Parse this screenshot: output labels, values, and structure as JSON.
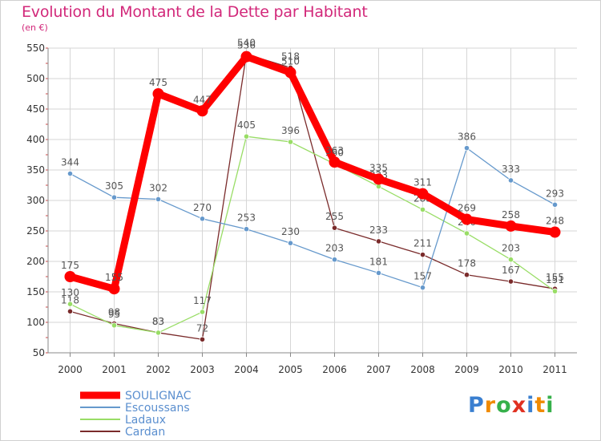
{
  "title": "Evolution du Montant de la Dette par Habitant",
  "unit": "(en €)",
  "logo": {
    "letters": [
      "P",
      "r",
      "o",
      "x",
      "i",
      "t",
      "i"
    ],
    "colors": [
      "#3a7fd0",
      "#f08a00",
      "#36b04a",
      "#e03020",
      "#3a7fd0",
      "#f08a00",
      "#36b04a"
    ]
  },
  "chart_data": {
    "type": "line",
    "title": "Evolution du Montant de la Dette par Habitant",
    "ylabel": "(en €)",
    "xlabel": "",
    "categories": [
      "2000",
      "2001",
      "2002",
      "2003",
      "2004",
      "2005",
      "2006",
      "2007",
      "2008",
      "2009",
      "2010",
      "2011"
    ],
    "ylim": [
      50,
      550
    ],
    "yticks": [
      50,
      100,
      150,
      200,
      250,
      300,
      350,
      400,
      450,
      500,
      550
    ],
    "grid": true,
    "series": [
      {
        "name": "SOULIGNAC",
        "color": "#ff0000",
        "values": [
          175,
          155,
          475,
          447,
          536,
          510,
          363,
          335,
          311,
          269,
          258,
          248
        ]
      },
      {
        "name": "Escoussans",
        "color": "#6699cc",
        "values": [
          344,
          305,
          302,
          270,
          253,
          230,
          203,
          181,
          157,
          386,
          333,
          293
        ]
      },
      {
        "name": "Ladaux",
        "color": "#99dd66",
        "values": [
          130,
          95,
          83,
          117,
          405,
          396,
          360,
          323,
          285,
          246,
          203,
          151
        ]
      },
      {
        "name": "Cardan",
        "color": "#7a2b2b",
        "values": [
          118,
          98,
          83,
          72,
          540,
          518,
          255,
          233,
          211,
          178,
          167,
          155
        ]
      }
    ]
  }
}
